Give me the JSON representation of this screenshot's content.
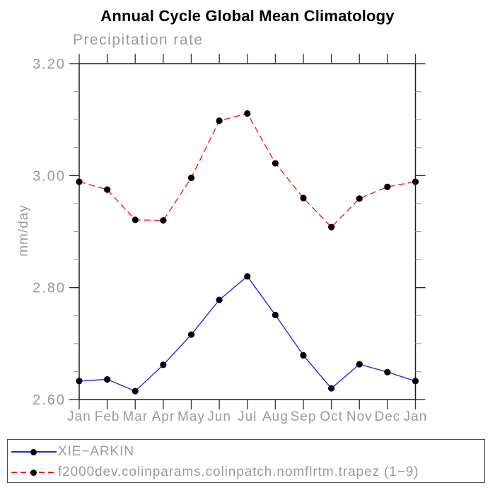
{
  "chart_data": {
    "type": "line",
    "title": "Annual Cycle Global Mean Climatology",
    "subtitle": "Precipitation rate",
    "ylabel": "mm/day",
    "xlabel": "",
    "categories": [
      "Jan",
      "Feb",
      "Mar",
      "Apr",
      "May",
      "Jun",
      "Jul",
      "Aug",
      "Sep",
      "Oct",
      "Nov",
      "Dec",
      "Jan"
    ],
    "ylim": [
      2.6,
      3.2
    ],
    "ytick_major": [
      2.6,
      2.8,
      3.0,
      3.2
    ],
    "ytick_labels": [
      "2.60",
      "2.80",
      "3.00",
      "3.20"
    ],
    "ytick_minor_step": 0.05,
    "grid": false,
    "legend_position": "bottom-left-box",
    "series": [
      {
        "name": "XIE−ARKIN",
        "color": "#2626e0",
        "line_style": "solid",
        "marker": "circle",
        "marker_color": "#000000",
        "values": [
          2.633,
          2.636,
          2.615,
          2.662,
          2.716,
          2.778,
          2.82,
          2.751,
          2.679,
          2.62,
          2.663,
          2.649,
          2.633
        ]
      },
      {
        "name": "f2000dev.colinparams.colinpatch.nomflrtm.trapez (1−9)",
        "color": "#f01c1c",
        "line_style": "dashed",
        "marker": "circle",
        "marker_color": "#000000",
        "values": [
          2.989,
          2.975,
          2.921,
          2.92,
          2.996,
          3.098,
          3.111,
          3.022,
          2.96,
          2.908,
          2.959,
          2.98,
          2.989
        ]
      }
    ]
  },
  "colors": {
    "axis": "#1c1c1c",
    "major_tick": "#2a2a2a",
    "minor_tick": "#9e9e9e",
    "month_tick": "#3c3c3c",
    "gray_text": "#9a9a9a",
    "title_text": "#000000",
    "legend_border": "#4a4a4a"
  }
}
